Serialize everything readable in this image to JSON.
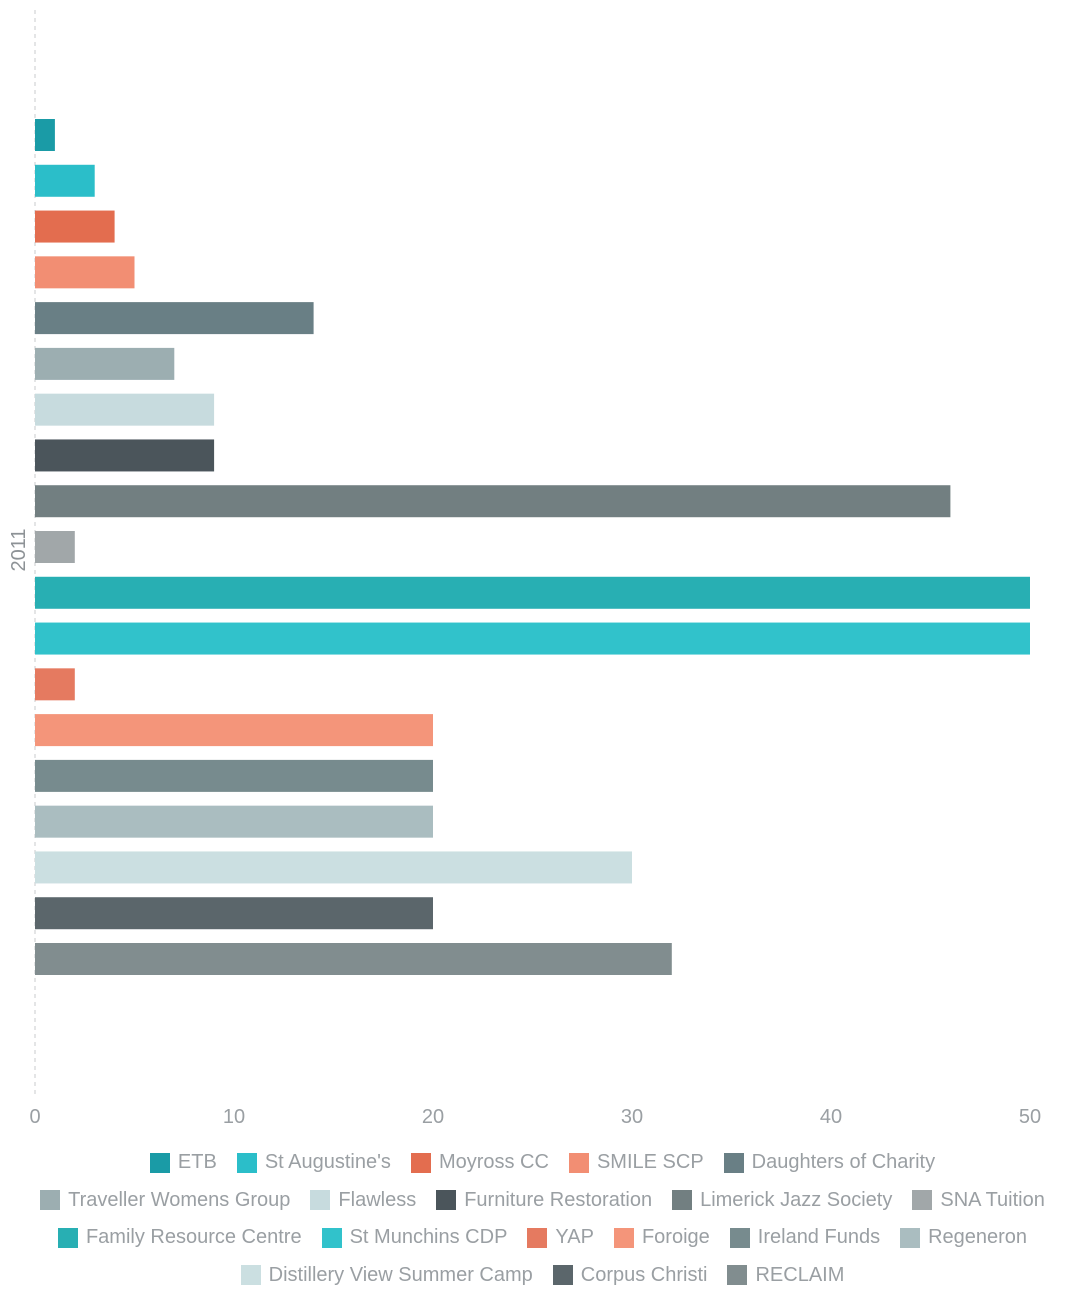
{
  "chart_data": {
    "type": "bar",
    "orientation": "horizontal",
    "category_label": "2011",
    "xlim": [
      0,
      50
    ],
    "x_ticks": [
      0,
      10,
      20,
      30,
      40,
      50
    ],
    "legend_position": "bottom",
    "grid": false,
    "series": [
      {
        "name": "ETB",
        "value": 1,
        "color": "#1a9ba6"
      },
      {
        "name": "St Augustine's",
        "value": 3,
        "color": "#2bbec9"
      },
      {
        "name": "Moyross CC",
        "value": 4,
        "color": "#e36d4f"
      },
      {
        "name": "SMILE SCP",
        "value": 5,
        "color": "#f28e73"
      },
      {
        "name": "Daughters of Charity",
        "value": 14,
        "color": "#697f85"
      },
      {
        "name": "Traveller Womens Group",
        "value": 7,
        "color": "#9caeb1"
      },
      {
        "name": "Flawless",
        "value": 9,
        "color": "#c7dbde"
      },
      {
        "name": "Furniture Restoration",
        "value": 9,
        "color": "#4b555b"
      },
      {
        "name": "Limerick Jazz Society",
        "value": 46,
        "color": "#727f81"
      },
      {
        "name": "SNA Tuition",
        "value": 2,
        "color": "#a1a7a9"
      },
      {
        "name": "Family Resource Centre",
        "value": 50,
        "color": "#28afb3"
      },
      {
        "name": "St Munchins CDP",
        "value": 50,
        "color": "#31c2cb"
      },
      {
        "name": "YAP",
        "value": 2,
        "color": "#e57a60"
      },
      {
        "name": "Foroige",
        "value": 20,
        "color": "#f4957a"
      },
      {
        "name": "Ireland Funds",
        "value": 20,
        "color": "#778b8e"
      },
      {
        "name": "Regeneron",
        "value": 20,
        "color": "#aabdc0"
      },
      {
        "name": "Distillery View Summer Camp",
        "value": 30,
        "color": "#cbdfe1"
      },
      {
        "name": "Corpus Christi",
        "value": 20,
        "color": "#5b666b"
      },
      {
        "name": "RECLAIM",
        "value": 32,
        "color": "#818d8f"
      }
    ]
  }
}
